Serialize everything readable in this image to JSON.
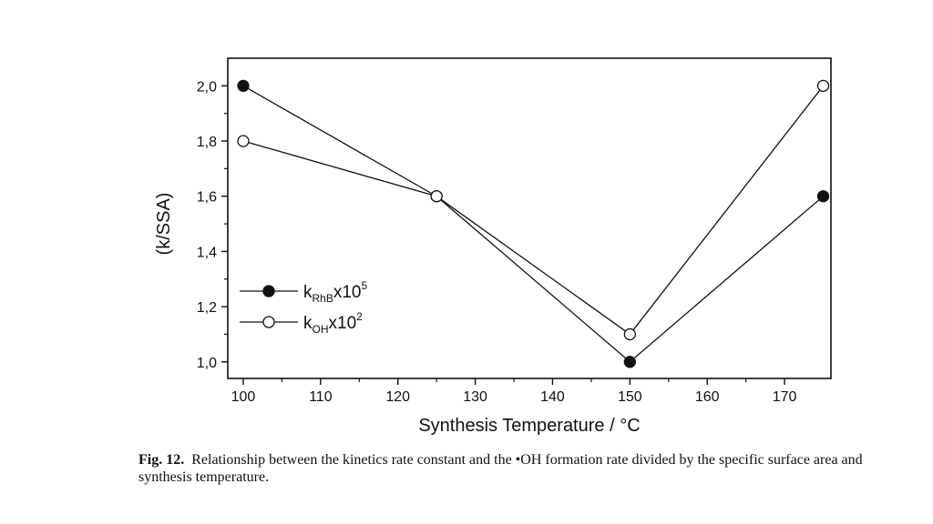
{
  "chart_data": {
    "type": "line",
    "x": [
      100,
      125,
      150,
      175
    ],
    "series": [
      {
        "name_main": "k",
        "name_sub": "RhB",
        "name_tail": "x10",
        "name_sup": "5",
        "marker": "filled-circle",
        "values": [
          2.0,
          1.6,
          1.0,
          1.6
        ]
      },
      {
        "name_main": "k",
        "name_sub": "OH",
        "name_tail": "x10",
        "name_sup": "2",
        "marker": "open-circle",
        "values": [
          1.8,
          1.6,
          1.1,
          2.0
        ]
      }
    ],
    "xlabel": "Synthesis Temperature / °C",
    "ylabel": "(k/SSA)",
    "xlim": [
      98,
      176
    ],
    "ylim": [
      0.94,
      2.1
    ],
    "xticks": [
      100,
      110,
      120,
      130,
      140,
      150,
      160,
      170
    ],
    "xtick_labels": [
      "100",
      "110",
      "120",
      "130",
      "140",
      "150",
      "160",
      "170"
    ],
    "yticks": [
      1.0,
      1.2,
      1.4,
      1.6,
      1.8,
      2.0
    ],
    "ytick_labels": [
      "1,0",
      "1,2",
      "1,4",
      "1,6",
      "1,8",
      "2,0"
    ],
    "legend_position": "lower-left",
    "grid": false,
    "line_color": "#111111"
  },
  "caption": {
    "label": "Fig. 12.",
    "text": "Relationship between the kinetics rate constant and the •OH formation rate divided by the specific surface area and synthesis temperature."
  }
}
